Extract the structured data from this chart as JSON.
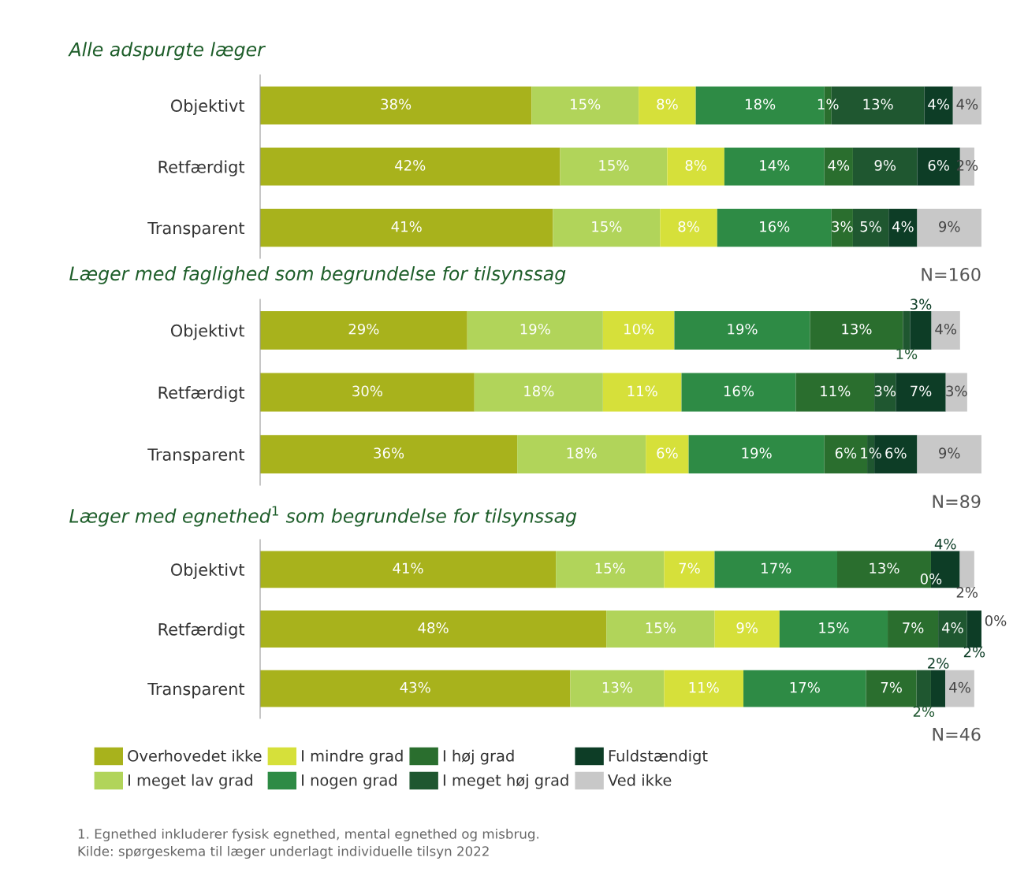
{
  "chart_data": [
    {
      "type": "bar",
      "orientation": "horizontal",
      "stacked": true,
      "title": "Alle adspurgte læger",
      "categories": [
        "Objektivt",
        "Retfærdigt",
        "Transparent"
      ],
      "tick_labels": "y",
      "legend": "bottom",
      "annotations": [
        "N=160"
      ],
      "series": [
        {
          "name": "Overhovedet ikke",
          "color": "#a8b21c",
          "values": [
            38,
            42,
            41
          ],
          "value_labels": [
            "38%",
            "42%",
            "41%"
          ]
        },
        {
          "name": "I meget lav grad",
          "color": "#b1d45a",
          "values": [
            15,
            15,
            15
          ],
          "value_labels": [
            "15%",
            "15%",
            "15%"
          ]
        },
        {
          "name": "I mindre grad",
          "color": "#d6e03a",
          "values": [
            8,
            8,
            8
          ],
          "value_labels": [
            "8%",
            "8%",
            "8%"
          ]
        },
        {
          "name": "I nogen grad",
          "color": "#2e8b45",
          "values": [
            18,
            14,
            16
          ],
          "value_labels": [
            "18%",
            "14%",
            "16%"
          ]
        },
        {
          "name": "I høj grad",
          "color": "#2a6e2e",
          "values": [
            1,
            4,
            3
          ],
          "value_labels": [
            "1%",
            "4%",
            "3%"
          ]
        },
        {
          "name": "I meget høj grad",
          "color": "#1f5730",
          "values": [
            13,
            9,
            5
          ],
          "value_labels": [
            "13%",
            "9%",
            "5%"
          ]
        },
        {
          "name": "Fuldstændigt",
          "color": "#0d3d26",
          "values": [
            4,
            6,
            4
          ],
          "value_labels": [
            "4%",
            "6%",
            "4%"
          ]
        },
        {
          "name": "Ved ikke",
          "color": "#c8c8c8",
          "values": [
            4,
            2,
            9
          ],
          "value_labels": [
            "4%",
            "2%",
            "9%"
          ]
        }
      ]
    },
    {
      "type": "bar",
      "orientation": "horizontal",
      "stacked": true,
      "title": "Læger med faglighed som begrundelse for tilsynssag",
      "categories": [
        "Objektivt",
        "Retfærdigt",
        "Transparent"
      ],
      "tick_labels": "y",
      "annotations": [
        "N=89"
      ],
      "series": [
        {
          "color": "#a8b21c",
          "values": [
            29,
            30,
            36
          ],
          "value_labels": [
            "29%",
            "30%",
            "36%"
          ]
        },
        {
          "color": "#b1d45a",
          "values": [
            19,
            18,
            18
          ],
          "value_labels": [
            "19%",
            "18%",
            "18%"
          ]
        },
        {
          "color": "#d6e03a",
          "values": [
            10,
            11,
            6
          ],
          "value_labels": [
            "10%",
            "11%",
            "6%"
          ]
        },
        {
          "color": "#2e8b45",
          "values": [
            19,
            16,
            19
          ],
          "value_labels": [
            "19%",
            "16%",
            "19%"
          ]
        },
        {
          "color": "#2a6e2e",
          "values": [
            13,
            11,
            6
          ],
          "value_labels": [
            "13%",
            "11%",
            "6%"
          ]
        },
        {
          "color": "#1f5730",
          "values": [
            1,
            3,
            1
          ],
          "value_labels": [
            "1%",
            "3%",
            "1%"
          ]
        },
        {
          "color": "#0d3d26",
          "values": [
            3,
            7,
            6
          ],
          "value_labels": [
            "3%",
            "7%",
            "6%"
          ]
        },
        {
          "color": "#c8c8c8",
          "values": [
            4,
            3,
            9
          ],
          "value_labels": [
            "4%",
            "3%",
            "9%"
          ]
        }
      ]
    },
    {
      "type": "bar",
      "orientation": "horizontal",
      "stacked": true,
      "title": "Læger med egnethed$^{1}$ som begrundelse for tilsynssag",
      "categories": [
        "Objektivt",
        "Retfærdigt",
        "Transparent"
      ],
      "tick_labels": "y",
      "annotations": [
        "N=46",
        "1. Egnethed inkluderer fysisk egnethed, mental egnethed og misbrug.",
        "Kilde: spørgeskema til læger underlagt individuelle tilsyn 2022"
      ],
      "series": [
        {
          "color": "#a8b21c",
          "values": [
            41,
            48,
            43
          ],
          "value_labels": [
            "41%",
            "48%",
            "43%"
          ]
        },
        {
          "color": "#b1d45a",
          "values": [
            15,
            15,
            13
          ],
          "value_labels": [
            "15%",
            "15%",
            "13%"
          ]
        },
        {
          "color": "#d6e03a",
          "values": [
            7,
            9,
            11
          ],
          "value_labels": [
            "7%",
            "9%",
            "11%"
          ]
        },
        {
          "color": "#2e8b45",
          "values": [
            17,
            15,
            17
          ],
          "value_labels": [
            "17%",
            "15%",
            "17%"
          ]
        },
        {
          "color": "#2a6e2e",
          "values": [
            13,
            7,
            7
          ],
          "value_labels": [
            "13%",
            "7%",
            "7%"
          ]
        },
        {
          "color": "#1f5730",
          "values": [
            0,
            4,
            2
          ],
          "value_labels": [
            "0%",
            "4%",
            "2%"
          ]
        },
        {
          "color": "#0d3d26",
          "values": [
            4,
            2,
            2
          ],
          "value_labels": [
            "4%",
            "2%",
            "2%"
          ]
        },
        {
          "color": "#c8c8c8",
          "values": [
            2,
            0,
            4
          ],
          "value_labels": [
            "2%",
            "0%",
            "4%"
          ]
        }
      ]
    }
  ]
}
